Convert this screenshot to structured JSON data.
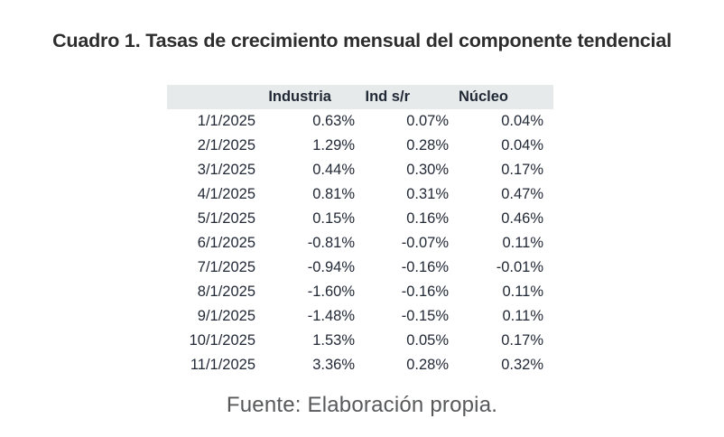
{
  "colors": {
    "header_bg": "#e7eaea",
    "table_text": "#222936",
    "title_text": "#2d2d2d",
    "source_text": "#58595b"
  },
  "chart_data": {
    "type": "table",
    "title": "Cuadro 1. Tasas de crecimiento mensual del componente tendencial",
    "columns": [
      "",
      "Industria",
      "Ind s/r",
      "Núcleo"
    ],
    "rows": [
      [
        "1/1/2025",
        "0.63%",
        "0.07%",
        "0.04%"
      ],
      [
        "2/1/2025",
        "1.29%",
        "0.28%",
        "0.04%"
      ],
      [
        "3/1/2025",
        "0.44%",
        "0.30%",
        "0.17%"
      ],
      [
        "4/1/2025",
        "0.81%",
        "0.31%",
        "0.47%"
      ],
      [
        "5/1/2025",
        "0.15%",
        "0.16%",
        "0.46%"
      ],
      [
        "6/1/2025",
        "-0.81%",
        "-0.07%",
        "0.11%"
      ],
      [
        "7/1/2025",
        "-0.94%",
        "-0.16%",
        "-0.01%"
      ],
      [
        "8/1/2025",
        "-1.60%",
        "-0.16%",
        "0.11%"
      ],
      [
        "9/1/2025",
        "-1.48%",
        "-0.15%",
        "0.11%"
      ],
      [
        "10/1/2025",
        "1.53%",
        "0.05%",
        "0.17%"
      ],
      [
        "11/1/2025",
        "3.36%",
        "0.28%",
        "0.32%"
      ]
    ],
    "source_note": "Fuente: Elaboración propia.",
    "layout": {
      "header_background": "#e7eaea",
      "value_alignment": "right",
      "grid": false
    }
  }
}
